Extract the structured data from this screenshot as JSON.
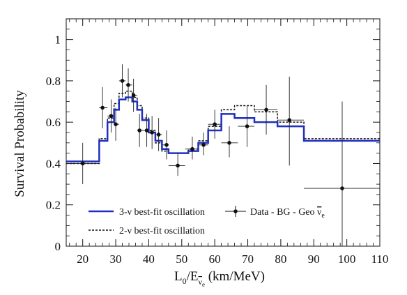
{
  "chart_data": {
    "type": "line",
    "xlabel_main": "L",
    "xlabel_sub0": "0",
    "xlabel_mid": "/E",
    "xlabel_nu": "ν",
    "xlabel_sub_e": "e",
    "xlabel_units": " (km/MeV)",
    "ylabel": "Survival Probability",
    "xlim": [
      15,
      110
    ],
    "ylim": [
      0,
      1.1
    ],
    "x_ticks": [
      "20",
      "30",
      "40",
      "50",
      "60",
      "70",
      "80",
      "90",
      "100",
      "110"
    ],
    "y_ticks": [
      "0",
      "0.2",
      "0.4",
      "0.6",
      "0.8",
      "1"
    ],
    "grid": false,
    "legend_placement": "bottom-left",
    "legend": {
      "three_nu": "3-ν best-fit oscillation",
      "two_nu": "2-ν best-fit oscillation",
      "data_prefix": "Data - BG - Geo ",
      "data_nu": "ν",
      "data_sub": "e"
    },
    "series": [
      {
        "name": "3-ν best-fit oscillation",
        "style": "solid",
        "color": "#1f2fbf",
        "edges": [
          15,
          25,
          27.5,
          29.5,
          31,
          33,
          35,
          36.5,
          38,
          40,
          42,
          44,
          46,
          52,
          55,
          58,
          62,
          66,
          72,
          79,
          87,
          110
        ],
        "values": [
          0.41,
          0.51,
          0.6,
          0.66,
          0.71,
          0.72,
          0.7,
          0.66,
          0.61,
          0.55,
          0.51,
          0.47,
          0.45,
          0.46,
          0.5,
          0.56,
          0.64,
          0.62,
          0.6,
          0.58,
          0.51
        ]
      },
      {
        "name": "2-ν best-fit oscillation",
        "style": "dashed",
        "color": "#111111",
        "edges": [
          15,
          25,
          27.5,
          29.5,
          31,
          33,
          35,
          36.5,
          38,
          40,
          42,
          44,
          46,
          52,
          55,
          58,
          62,
          66,
          72,
          79,
          87,
          110
        ],
        "values": [
          0.4,
          0.52,
          0.62,
          0.69,
          0.74,
          0.75,
          0.72,
          0.68,
          0.62,
          0.56,
          0.5,
          0.46,
          0.45,
          0.47,
          0.51,
          0.58,
          0.66,
          0.68,
          0.65,
          0.6,
          0.52
        ]
      }
    ],
    "data_points": {
      "name": "Data - BG - Geo ν̄e",
      "points": [
        {
          "x": 20,
          "y": 0.4,
          "xlo": 15,
          "xhi": 25,
          "ylo": 0.3,
          "yhi": 0.5
        },
        {
          "x": 26,
          "y": 0.67,
          "xlo": 25,
          "xhi": 27.5,
          "ylo": 0.57,
          "yhi": 0.77
        },
        {
          "x": 28.6,
          "y": 0.63,
          "xlo": 27.5,
          "xhi": 29.5,
          "ylo": 0.55,
          "yhi": 0.71
        },
        {
          "x": 30,
          "y": 0.59,
          "xlo": 29.5,
          "xhi": 31,
          "ylo": 0.51,
          "yhi": 0.67
        },
        {
          "x": 32,
          "y": 0.8,
          "xlo": 31,
          "xhi": 33,
          "ylo": 0.72,
          "yhi": 0.88
        },
        {
          "x": 33.8,
          "y": 0.78,
          "xlo": 33,
          "xhi": 35,
          "ylo": 0.7,
          "yhi": 0.86
        },
        {
          "x": 35.4,
          "y": 0.73,
          "xlo": 35,
          "xhi": 36.5,
          "ylo": 0.65,
          "yhi": 0.81
        },
        {
          "x": 37.2,
          "y": 0.56,
          "xlo": 36.5,
          "xhi": 38,
          "ylo": 0.48,
          "yhi": 0.64
        },
        {
          "x": 39.4,
          "y": 0.56,
          "xlo": 38,
          "xhi": 40,
          "ylo": 0.48,
          "yhi": 0.64
        },
        {
          "x": 41,
          "y": 0.55,
          "xlo": 40,
          "xhi": 42,
          "ylo": 0.47,
          "yhi": 0.63
        },
        {
          "x": 43,
          "y": 0.54,
          "xlo": 42,
          "xhi": 44,
          "ylo": 0.46,
          "yhi": 0.62
        },
        {
          "x": 45.4,
          "y": 0.49,
          "xlo": 44,
          "xhi": 46,
          "ylo": 0.42,
          "yhi": 0.56
        },
        {
          "x": 48.8,
          "y": 0.39,
          "xlo": 46,
          "xhi": 51,
          "ylo": 0.34,
          "yhi": 0.45
        },
        {
          "x": 53.2,
          "y": 0.47,
          "xlo": 51,
          "xhi": 55,
          "ylo": 0.42,
          "yhi": 0.53
        },
        {
          "x": 56.6,
          "y": 0.49,
          "xlo": 55,
          "xhi": 58,
          "ylo": 0.44,
          "yhi": 0.55
        },
        {
          "x": 60,
          "y": 0.59,
          "xlo": 58,
          "xhi": 62,
          "ylo": 0.52,
          "yhi": 0.66
        },
        {
          "x": 64.4,
          "y": 0.5,
          "xlo": 62,
          "xhi": 67,
          "ylo": 0.43,
          "yhi": 0.58
        },
        {
          "x": 69.8,
          "y": 0.58,
          "xlo": 67,
          "xhi": 72,
          "ylo": 0.48,
          "yhi": 0.68
        },
        {
          "x": 75.6,
          "y": 0.66,
          "xlo": 72,
          "xhi": 79,
          "ylo": 0.54,
          "yhi": 0.78
        },
        {
          "x": 82.6,
          "y": 0.61,
          "xlo": 79,
          "xhi": 87,
          "ylo": 0.39,
          "yhi": 0.82
        },
        {
          "x": 98.6,
          "y": 0.28,
          "xlo": 87,
          "xhi": 110,
          "ylo": 0.0,
          "yhi": 0.7
        }
      ]
    }
  }
}
